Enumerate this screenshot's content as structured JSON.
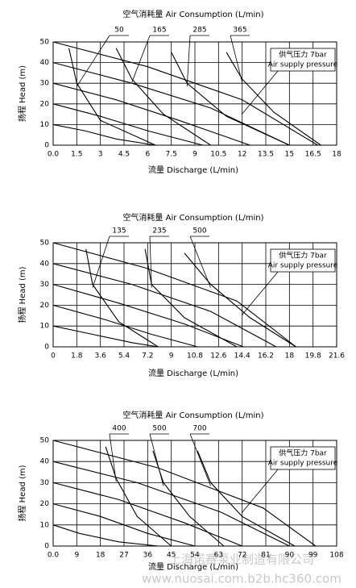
{
  "chart_data": [
    {
      "type": "line",
      "title": "空气消耗量 Air Consumption (L/min)",
      "x_label": "流量 Discharge (L/min)",
      "y_label": "扬程 Head (m)",
      "annotation": [
        "供气压力 7bar",
        "Air supply pressure"
      ],
      "xlim": [
        0,
        18
      ],
      "xticks": [
        {
          "value": 0,
          "label": "0.0"
        },
        1.5,
        3,
        4.5,
        6,
        7.5,
        9,
        10.5,
        12,
        13.5,
        15,
        16.5,
        18
      ],
      "ylim": [
        0,
        50
      ],
      "yticks": [
        0,
        10,
        20,
        30,
        40,
        50
      ],
      "grid": true,
      "series": [
        {
          "color": "#000000",
          "x": [
            0,
            6,
            12,
            16.8
          ],
          "values": [
            50,
            38,
            22,
            0
          ]
        },
        {
          "color": "#000000",
          "x": [
            0,
            5,
            10,
            15
          ],
          "values": [
            40,
            30,
            18,
            0
          ]
        },
        {
          "color": "#000000",
          "x": [
            0,
            4,
            8,
            12.5
          ],
          "values": [
            30,
            22,
            12,
            0
          ]
        },
        {
          "color": "#000000",
          "x": [
            0,
            3,
            6,
            9.5
          ],
          "values": [
            20,
            14,
            7,
            0
          ]
        },
        {
          "color": "#000000",
          "x": [
            0,
            2,
            4,
            6.5
          ],
          "values": [
            10,
            7,
            3,
            0
          ]
        },
        {
          "name": "50",
          "color": "#000000",
          "x": [
            1,
            1.5,
            3,
            6.5
          ],
          "values": [
            47,
            30,
            12,
            0
          ]
        },
        {
          "name": "165",
          "color": "#000000",
          "x": [
            4,
            5,
            7,
            10
          ],
          "values": [
            47,
            32,
            15,
            0
          ]
        },
        {
          "name": "285",
          "color": "#000000",
          "x": [
            7.5,
            8.5,
            11,
            15
          ],
          "values": [
            45,
            30,
            14,
            0
          ]
        },
        {
          "name": "365",
          "color": "#000000",
          "x": [
            11,
            12,
            14,
            17
          ],
          "values": [
            45,
            32,
            16,
            0
          ]
        }
      ]
    },
    {
      "type": "line",
      "title": "空气消耗量 Air Consumption (L/min)",
      "x_label": "流量 Discharge (L/min)",
      "y_label": "扬程 Head (m)",
      "annotation": [
        "供气压力 7bar",
        "Air supply pressure"
      ],
      "xlim": [
        0,
        21.6
      ],
      "xticks": [
        0,
        1.8,
        3.6,
        5.4,
        7.2,
        9,
        10.8,
        12.6,
        14.4,
        16.2,
        18,
        19.8,
        21.6
      ],
      "ylim": [
        0,
        50
      ],
      "yticks": [
        0,
        10,
        20,
        30,
        40,
        50
      ],
      "grid": true,
      "series": [
        {
          "color": "#000000",
          "x": [
            0,
            7,
            14,
            18.5
          ],
          "values": [
            50,
            38,
            22,
            0
          ]
        },
        {
          "color": "#000000",
          "x": [
            0,
            6,
            12,
            17
          ],
          "values": [
            40,
            30,
            17,
            0
          ]
        },
        {
          "color": "#000000",
          "x": [
            0,
            5,
            10,
            14.5
          ],
          "values": [
            30,
            21,
            11,
            0
          ]
        },
        {
          "color": "#000000",
          "x": [
            0,
            4,
            7.5,
            11
          ],
          "values": [
            20,
            13,
            6,
            0
          ]
        },
        {
          "color": "#000000",
          "x": [
            0,
            3,
            6,
            8
          ],
          "values": [
            10,
            6,
            2,
            0
          ]
        },
        {
          "name": "135",
          "color": "#000000",
          "x": [
            2.5,
            3,
            5,
            8
          ],
          "values": [
            47,
            30,
            12,
            0
          ]
        },
        {
          "name": "235",
          "color": "#000000",
          "x": [
            7,
            7.5,
            10,
            14
          ],
          "values": [
            47,
            30,
            14,
            0
          ]
        },
        {
          "name": "500",
          "color": "#000000",
          "x": [
            10,
            12,
            15,
            18.5
          ],
          "values": [
            45,
            30,
            14,
            0
          ]
        }
      ]
    },
    {
      "type": "line",
      "title": "空气消耗量 Air Consumption (L/min)",
      "x_label": "流量 Discharge (L/min)",
      "y_label": "扬程 Head (m)",
      "annotation": [
        "供气压力 7bar",
        "Air supply pressure"
      ],
      "xlim": [
        0,
        108
      ],
      "xticks": [
        {
          "value": 0,
          "label": "0.0"
        },
        9,
        18,
        27,
        36,
        45,
        54,
        63,
        72,
        81,
        90,
        99,
        108
      ],
      "ylim": [
        0,
        50
      ],
      "yticks": [
        0,
        10,
        20,
        30,
        40,
        50
      ],
      "grid": true,
      "series": [
        {
          "color": "#000000",
          "x": [
            0,
            40,
            80,
            100
          ],
          "values": [
            50,
            37,
            18,
            0
          ]
        },
        {
          "color": "#000000",
          "x": [
            0,
            32,
            64,
            90
          ],
          "values": [
            40,
            30,
            16,
            0
          ]
        },
        {
          "color": "#000000",
          "x": [
            0,
            25,
            50,
            72
          ],
          "values": [
            30,
            22,
            11,
            0
          ]
        },
        {
          "color": "#000000",
          "x": [
            0,
            18,
            36,
            54
          ],
          "values": [
            20,
            14,
            6,
            0
          ]
        },
        {
          "color": "#000000",
          "x": [
            0,
            10,
            25,
            40
          ],
          "values": [
            10,
            6,
            2,
            0
          ]
        },
        {
          "name": "400",
          "color": "#000000",
          "x": [
            20,
            24,
            32,
            45
          ],
          "values": [
            47,
            32,
            14,
            0
          ]
        },
        {
          "name": "500",
          "color": "#000000",
          "x": [
            38,
            42,
            52,
            65
          ],
          "values": [
            45,
            30,
            14,
            0
          ]
        },
        {
          "name": "700",
          "color": "#000000",
          "x": [
            55,
            60,
            72,
            92
          ],
          "values": [
            45,
            30,
            14,
            0
          ]
        }
      ]
    }
  ],
  "watermark": [
    "上海诺赛泵业制造有限公司",
    "www.nuosai.com.b2b.hc360.com"
  ]
}
